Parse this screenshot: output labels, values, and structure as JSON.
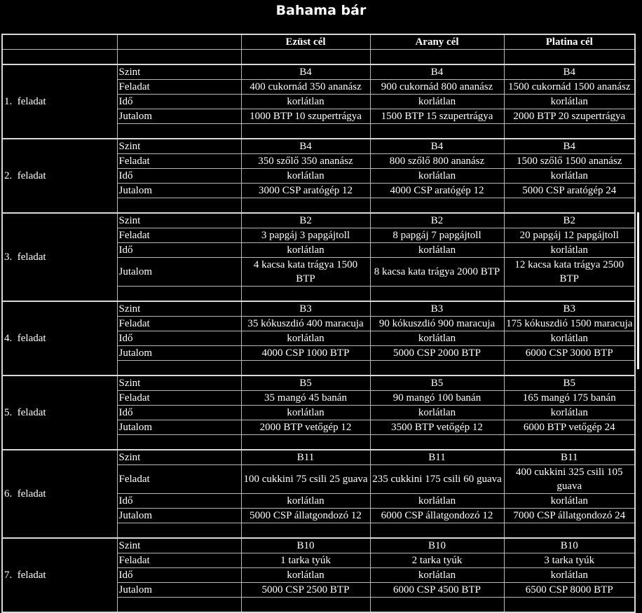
{
  "page": {
    "title": "Bahama bár",
    "background": "#000000",
    "text_color": "#ffffff",
    "border_color": "#b9b9b9"
  },
  "table": {
    "headers": [
      "",
      "",
      "Ezüst cél",
      "Arany cél",
      "Platina cél"
    ],
    "blocks": [
      {
        "label": "1.  feladat",
        "rows": [
          {
            "label": "Szint",
            "values": [
              "B4",
              "B4",
              "B4"
            ]
          },
          {
            "label": "Feladat",
            "values": [
              "400 cukornád 350 ananász",
              "900 cukornád 800 ananász",
              "1500 cukornád 1500 ananász"
            ]
          },
          {
            "label": "Idő",
            "values": [
              "korlátlan",
              "korlátlan",
              "korlátlan"
            ]
          },
          {
            "label": "Jutalom",
            "values": [
              "1000 BTP 10 szupertrágya",
              "1500 BTP 15 szupertrágya",
              "2000 BTP 20 szupertrágya"
            ]
          }
        ]
      },
      {
        "label": "2.  feladat",
        "rows": [
          {
            "label": "Szint",
            "values": [
              "B4",
              "B4",
              "B4"
            ]
          },
          {
            "label": "Feladat",
            "values": [
              "350 szőlő 350 ananász",
              "800 szőlő 800 ananász",
              "1500 szőlő 1500 ananász"
            ]
          },
          {
            "label": "Idő",
            "values": [
              "korlátlan",
              "korlátlan",
              "korlátlan"
            ]
          },
          {
            "label": "Jutalom",
            "values": [
              "3000 CSP aratógép 12",
              "4000 CSP aratógép 12",
              "5000 CSP aratógép 24"
            ]
          }
        ]
      },
      {
        "label": "3.  feladat",
        "rows": [
          {
            "label": "Szint",
            "values": [
              "B2",
              "B2",
              "B2"
            ]
          },
          {
            "label": "Feladat",
            "values": [
              "3 papgáj 3 papgájtoll",
              "8 papgáj 7 papgájtoll",
              "20 papgáj 12 papgájtoll"
            ]
          },
          {
            "label": "Idő",
            "values": [
              "korlátlan",
              "korlátlan",
              "korlátlan"
            ]
          },
          {
            "label": "Jutalom",
            "values": [
              "4 kacsa kata trágya 1500\nBTP",
              "8 kacsa kata trágya 2000 BTP",
              "12 kacsa kata trágya 2500\nBTP"
            ]
          }
        ]
      },
      {
        "label": "4.  feladat",
        "rows": [
          {
            "label": "Szint",
            "values": [
              "B3",
              "B3",
              "B3"
            ]
          },
          {
            "label": "Feladat",
            "values": [
              "35 kókuszdió 400 maracuja",
              "90 kókuszdió 900 maracuja",
              "175 kókuszdió 1500 maracuja"
            ]
          },
          {
            "label": "Idő",
            "values": [
              "korlátlan",
              "korlátlan",
              "korlátlan"
            ]
          },
          {
            "label": "Jutalom",
            "values": [
              "4000 CSP 1000 BTP",
              "5000 CSP 2000 BTP",
              "6000 CSP 3000 BTP"
            ]
          }
        ]
      },
      {
        "label": "5.  feladat",
        "rows": [
          {
            "label": "Szint",
            "values": [
              "B5",
              "B5",
              "B5"
            ]
          },
          {
            "label": "Feladat",
            "values": [
              "35 mangó 45 banán",
              "90 mangó 100 banán",
              "165 mangó 175 banán"
            ]
          },
          {
            "label": "Idő",
            "values": [
              "korlátlan",
              "korlátlan",
              "korlátlan"
            ]
          },
          {
            "label": "Jutalom",
            "values": [
              "2000 BTP vetőgép 12",
              "3500 BTP vetőgép 12",
              "6000 BTP vetőgép 24"
            ]
          }
        ]
      },
      {
        "label": "6.  feladat",
        "rows": [
          {
            "label": "Szint",
            "values": [
              "B11",
              "B11",
              "B11"
            ]
          },
          {
            "label": "Feladat",
            "values": [
              "100 cukkini 75 csili 25 guava",
              "235 cukkini 175 csili 60 guava",
              "400 cukkini 325 csili 105\nguava"
            ]
          },
          {
            "label": "Idő",
            "values": [
              "korlátlan",
              "korlátlan",
              "korlátlan"
            ]
          },
          {
            "label": "Jutalom",
            "values": [
              "5000 CSP állatgondozó 12",
              "6000 CSP állatgondozó 12",
              "7000 CSP állatgondozó 24"
            ]
          }
        ]
      },
      {
        "label": "7.  feladat",
        "rows": [
          {
            "label": "Szint",
            "values": [
              "B10",
              "B10",
              "B10"
            ]
          },
          {
            "label": "Feladat",
            "values": [
              "1 tarka tyúk",
              "2 tarka tyúk",
              "3 tarka tyúk"
            ]
          },
          {
            "label": "Idő",
            "values": [
              "korlátlan",
              "korlátlan",
              "korlátlan"
            ]
          },
          {
            "label": "Jutalom",
            "values": [
              "5000 CSP 2500 BTP",
              "6000 CSP 4500 BTP",
              "6500 CSP 8000 BTP"
            ]
          }
        ]
      }
    ]
  }
}
